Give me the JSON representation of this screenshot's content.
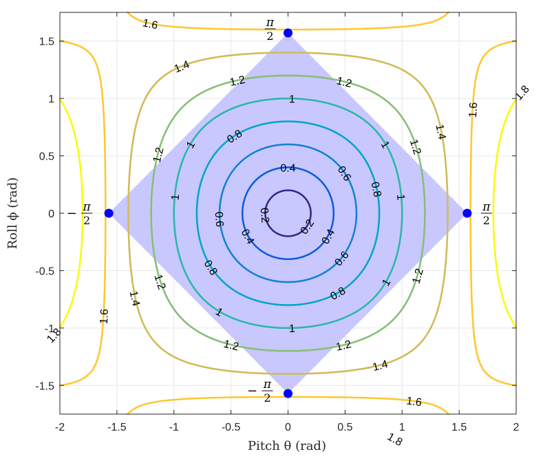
{
  "chart_data": {
    "type": "contour",
    "title": "",
    "xlabel": "Pitch θ (rad)",
    "ylabel": "Roll ϕ (rad)",
    "xlim": [
      -2,
      2
    ],
    "ylim": [
      -1.75,
      1.75
    ],
    "xticks": [
      -2,
      -1.5,
      -1,
      -0.5,
      0,
      0.5,
      1,
      1.5,
      2
    ],
    "xtick_labels": [
      "-2",
      "-1.5",
      "-1",
      "-0.5",
      "0",
      "0.5",
      "1",
      "1.5",
      "2"
    ],
    "yticks": [
      -1.5,
      -1,
      -0.5,
      0,
      0.5,
      1,
      1.5
    ],
    "ytick_labels": [
      "-1.5",
      "-1",
      "-0.5",
      "0",
      "0.5",
      "1",
      "1.5"
    ],
    "grid": true,
    "contour_levels": [
      0.2,
      0.4,
      0.6,
      0.8,
      1,
      1.2,
      1.4,
      1.6,
      1.8
    ],
    "contour_labels": [
      "0.2",
      "0.4",
      "0.6",
      "0.8",
      "1",
      "1.2",
      "1.4",
      "1.6",
      "1.8"
    ],
    "shaded_region": {
      "description_level": 1,
      "fill_color": "#c8c8ff"
    },
    "points": [
      {
        "x": 0,
        "y": 1.5708,
        "label": "π/2",
        "sign": ""
      },
      {
        "x": 0,
        "y": -1.5708,
        "label": "π/2",
        "sign": "−"
      },
      {
        "x": -1.5708,
        "y": 0,
        "label": "π/2",
        "sign": "−"
      },
      {
        "x": 1.5708,
        "y": 0,
        "label": "π/2",
        "sign": ""
      }
    ],
    "point_color": "#0000ff",
    "colormap": [
      "#352a87",
      "#0f5cdd",
      "#1481d6",
      "#06a4ca",
      "#2eb7a4",
      "#87bf77",
      "#d1bb59",
      "#fec832",
      "#f9fb0e"
    ]
  }
}
